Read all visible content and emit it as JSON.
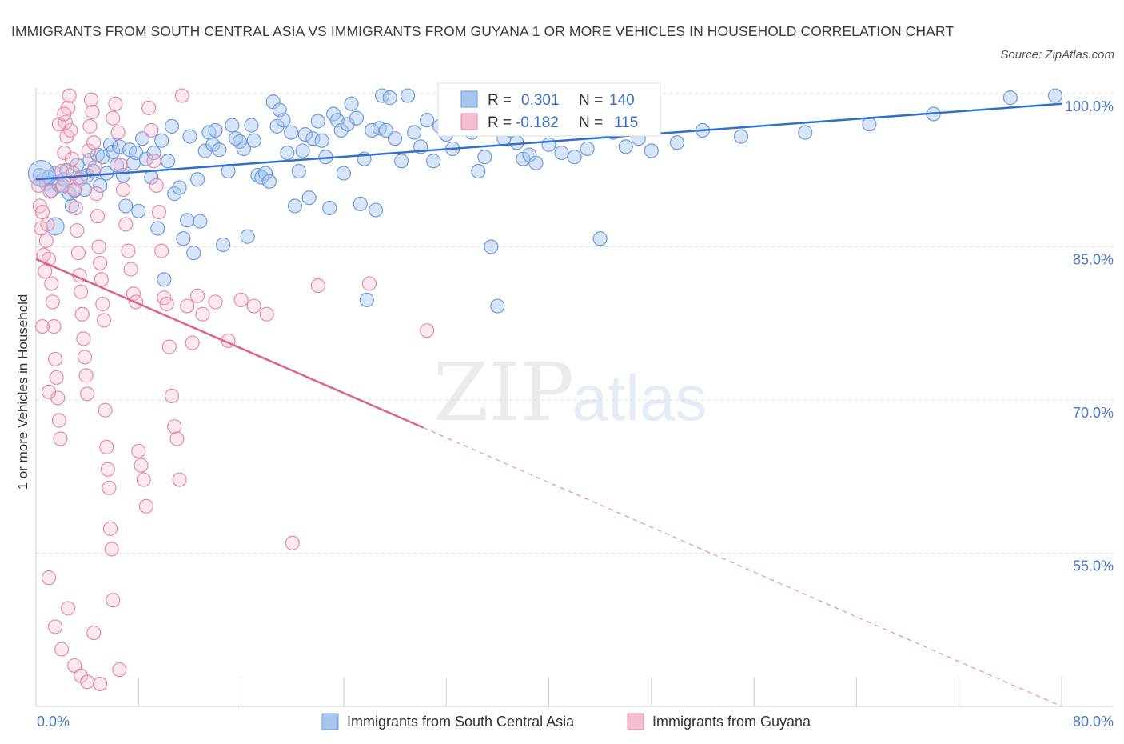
{
  "title": "IMMIGRANTS FROM SOUTH CENTRAL ASIA VS IMMIGRANTS FROM GUYANA 1 OR MORE VEHICLES IN HOUSEHOLD CORRELATION CHART",
  "source": "Source: ZipAtlas.com",
  "watermark": {
    "zip": "ZIP",
    "atlas": "atlas"
  },
  "colors": {
    "blue": "#6d9be0",
    "blue_fill": "#a9c6f0",
    "blue_line": "#2f6fcf",
    "pink": "#e889a8",
    "pink_fill": "#f5bdd0",
    "pink_line": "#e0608e",
    "grid": "#dddddd",
    "tick_text": "#4a7ac8"
  },
  "stats": {
    "blue": {
      "r_label": "R =",
      "r": "0.301",
      "n_label": "N =",
      "n": "140"
    },
    "pink": {
      "r_label": "R =",
      "r": "-0.182",
      "n_label": "N =",
      "n": "115"
    }
  },
  "legend": {
    "blue": "Immigrants from South Central Asia",
    "pink": "Immigrants from Guyana"
  },
  "chart_data": {
    "type": "scatter",
    "title": "IMMIGRANTS FROM SOUTH CENTRAL ASIA VS IMMIGRANTS FROM GUYANA 1 OR MORE VEHICLES IN HOUSEHOLD CORRELATION CHART",
    "xlabel": "",
    "ylabel": "1 or more Vehicles in Household",
    "xlim": [
      0,
      80
    ],
    "ylim": [
      40,
      100
    ],
    "x_ticks": [
      "0.0%",
      "80.0%"
    ],
    "y_ticks": [
      "100.0%",
      "85.0%",
      "70.0%",
      "55.0%"
    ],
    "y_tick_values": [
      100,
      85,
      70,
      55
    ],
    "grid": true,
    "legend_position": "bottom",
    "series": [
      {
        "name": "Immigrants from South Central Asia",
        "color": "#6d9be0",
        "r": 0.301,
        "n": 140,
        "trend": [
          [
            0,
            91.6
          ],
          [
            80,
            99.0
          ]
        ],
        "points": [
          [
            0.3,
            92.0
          ],
          [
            0.5,
            91.5
          ],
          [
            0.8,
            91.2
          ],
          [
            1.0,
            91.8
          ],
          [
            1.2,
            90.5
          ],
          [
            1.5,
            92.2
          ],
          [
            1.8,
            91.0
          ],
          [
            2.0,
            90.8
          ],
          [
            2.2,
            91.6
          ],
          [
            2.4,
            92.5
          ],
          [
            2.6,
            90.2
          ],
          [
            2.8,
            89.0
          ],
          [
            3.0,
            90.5
          ],
          [
            3.2,
            93.0
          ],
          [
            3.5,
            91.8
          ],
          [
            3.8,
            90.6
          ],
          [
            4.0,
            92.0
          ],
          [
            4.2,
            93.5
          ],
          [
            4.5,
            92.4
          ],
          [
            4.8,
            94.0
          ],
          [
            5.0,
            91.0
          ],
          [
            5.2,
            93.8
          ],
          [
            5.5,
            92.2
          ],
          [
            5.8,
            95.0
          ],
          [
            6.0,
            94.3
          ],
          [
            6.3,
            93.0
          ],
          [
            6.5,
            94.8
          ],
          [
            6.8,
            92.0
          ],
          [
            7.0,
            89.0
          ],
          [
            7.3,
            94.5
          ],
          [
            7.6,
            93.2
          ],
          [
            7.8,
            94.2
          ],
          [
            8.0,
            88.5
          ],
          [
            8.3,
            95.6
          ],
          [
            8.6,
            93.6
          ],
          [
            9.0,
            91.8
          ],
          [
            9.2,
            94.2
          ],
          [
            9.5,
            86.8
          ],
          [
            9.8,
            95.4
          ],
          [
            10.0,
            81.8
          ],
          [
            10.3,
            93.4
          ],
          [
            10.6,
            96.8
          ],
          [
            10.8,
            90.2
          ],
          [
            11.2,
            90.8
          ],
          [
            11.5,
            85.8
          ],
          [
            11.8,
            87.6
          ],
          [
            12.0,
            95.8
          ],
          [
            12.3,
            84.4
          ],
          [
            12.6,
            91.6
          ],
          [
            12.8,
            87.5
          ],
          [
            13.2,
            94.4
          ],
          [
            13.5,
            96.2
          ],
          [
            13.8,
            95.0
          ],
          [
            14.0,
            96.4
          ],
          [
            14.3,
            94.5
          ],
          [
            14.6,
            85.2
          ],
          [
            15.0,
            92.4
          ],
          [
            15.3,
            96.9
          ],
          [
            15.6,
            95.6
          ],
          [
            15.9,
            95.3
          ],
          [
            16.2,
            94.6
          ],
          [
            16.5,
            86.0
          ],
          [
            16.8,
            96.9
          ],
          [
            17.0,
            95.4
          ],
          [
            17.3,
            92.0
          ],
          [
            17.6,
            91.8
          ],
          [
            17.9,
            92.2
          ],
          [
            18.2,
            91.4
          ],
          [
            18.5,
            99.2
          ],
          [
            18.8,
            96.8
          ],
          [
            19.0,
            98.4
          ],
          [
            19.3,
            97.4
          ],
          [
            19.6,
            94.2
          ],
          [
            19.9,
            96.2
          ],
          [
            20.2,
            89.0
          ],
          [
            20.5,
            92.4
          ],
          [
            20.8,
            94.4
          ],
          [
            21.0,
            96.0
          ],
          [
            21.3,
            89.8
          ],
          [
            21.6,
            95.6
          ],
          [
            22.0,
            97.3
          ],
          [
            22.3,
            95.4
          ],
          [
            22.6,
            93.8
          ],
          [
            22.9,
            88.8
          ],
          [
            23.2,
            98.0
          ],
          [
            23.5,
            97.4
          ],
          [
            23.8,
            96.4
          ],
          [
            24.0,
            92.2
          ],
          [
            24.3,
            97.0
          ],
          [
            24.6,
            99.0
          ],
          [
            25.0,
            97.6
          ],
          [
            25.3,
            89.2
          ],
          [
            25.6,
            93.6
          ],
          [
            25.8,
            79.8
          ],
          [
            26.2,
            96.4
          ],
          [
            26.5,
            88.6
          ],
          [
            26.8,
            96.6
          ],
          [
            27.0,
            99.8
          ],
          [
            27.3,
            96.4
          ],
          [
            27.6,
            99.6
          ],
          [
            28.0,
            95.6
          ],
          [
            28.5,
            93.4
          ],
          [
            29.0,
            99.8
          ],
          [
            29.5,
            96.2
          ],
          [
            30.0,
            94.8
          ],
          [
            30.5,
            97.4
          ],
          [
            31.0,
            93.4
          ],
          [
            31.5,
            96.8
          ],
          [
            32.0,
            96.0
          ],
          [
            32.5,
            94.6
          ],
          [
            33.0,
            99.6
          ],
          [
            33.5,
            97.6
          ],
          [
            34.0,
            96.2
          ],
          [
            34.5,
            92.4
          ],
          [
            35.0,
            93.8
          ],
          [
            35.5,
            85.0
          ],
          [
            36.0,
            79.2
          ],
          [
            36.5,
            95.6
          ],
          [
            37.0,
            96.4
          ],
          [
            37.5,
            95.2
          ],
          [
            38.0,
            93.6
          ],
          [
            38.5,
            94.0
          ],
          [
            39.0,
            93.2
          ],
          [
            40.0,
            95.0
          ],
          [
            41.0,
            94.2
          ],
          [
            42.0,
            93.8
          ],
          [
            43.0,
            94.6
          ],
          [
            44.0,
            85.8
          ],
          [
            45.0,
            96.2
          ],
          [
            46.0,
            94.8
          ],
          [
            47.0,
            95.6
          ],
          [
            48.0,
            94.4
          ],
          [
            50.0,
            95.2
          ],
          [
            52.0,
            96.4
          ],
          [
            55.0,
            95.8
          ],
          [
            60.0,
            96.2
          ],
          [
            65.0,
            97.0
          ],
          [
            70.0,
            98.0
          ],
          [
            76.0,
            99.6
          ],
          [
            79.5,
            99.8
          ]
        ]
      },
      {
        "name": "Immigrants from Guyana",
        "color": "#e889a8",
        "r": -0.182,
        "n": 115,
        "trend": [
          [
            0,
            83.8
          ],
          [
            30.2,
            67.3
          ],
          [
            80,
            40.0
          ]
        ],
        "points": [
          [
            0.2,
            91.0
          ],
          [
            0.3,
            89.0
          ],
          [
            0.4,
            86.8
          ],
          [
            0.5,
            88.4
          ],
          [
            0.6,
            84.2
          ],
          [
            0.7,
            82.6
          ],
          [
            0.8,
            85.6
          ],
          [
            0.9,
            87.2
          ],
          [
            1.0,
            83.8
          ],
          [
            1.1,
            90.4
          ],
          [
            1.2,
            81.4
          ],
          [
            1.3,
            79.6
          ],
          [
            1.4,
            77.2
          ],
          [
            1.5,
            74.0
          ],
          [
            1.6,
            72.2
          ],
          [
            1.7,
            70.2
          ],
          [
            1.8,
            68.0
          ],
          [
            1.9,
            66.2
          ],
          [
            2.0,
            92.4
          ],
          [
            2.1,
            91.0
          ],
          [
            2.2,
            94.2
          ],
          [
            2.3,
            97.2
          ],
          [
            2.4,
            95.8
          ],
          [
            2.5,
            98.6
          ],
          [
            2.6,
            99.8
          ],
          [
            2.7,
            96.4
          ],
          [
            2.8,
            93.6
          ],
          [
            2.9,
            92.2
          ],
          [
            3.0,
            90.6
          ],
          [
            3.1,
            88.8
          ],
          [
            3.2,
            86.6
          ],
          [
            3.3,
            84.4
          ],
          [
            3.4,
            82.2
          ],
          [
            3.5,
            80.6
          ],
          [
            3.6,
            78.4
          ],
          [
            3.7,
            76.0
          ],
          [
            3.8,
            74.2
          ],
          [
            3.9,
            72.4
          ],
          [
            4.0,
            70.6
          ],
          [
            4.1,
            94.4
          ],
          [
            4.2,
            96.8
          ],
          [
            4.3,
            99.4
          ],
          [
            4.4,
            98.2
          ],
          [
            4.5,
            95.2
          ],
          [
            4.6,
            92.8
          ],
          [
            4.7,
            90.2
          ],
          [
            4.8,
            88.0
          ],
          [
            4.9,
            85.0
          ],
          [
            5.0,
            83.4
          ],
          [
            5.1,
            81.8
          ],
          [
            5.2,
            79.4
          ],
          [
            5.3,
            77.8
          ],
          [
            5.4,
            69.0
          ],
          [
            5.5,
            65.4
          ],
          [
            5.6,
            63.2
          ],
          [
            5.7,
            61.4
          ],
          [
            5.8,
            57.4
          ],
          [
            5.9,
            55.4
          ],
          [
            6.0,
            97.6
          ],
          [
            6.2,
            99.0
          ],
          [
            6.4,
            96.2
          ],
          [
            6.6,
            93.0
          ],
          [
            6.8,
            90.6
          ],
          [
            7.0,
            87.2
          ],
          [
            7.2,
            84.6
          ],
          [
            7.4,
            82.8
          ],
          [
            7.6,
            80.4
          ],
          [
            7.8,
            79.6
          ],
          [
            8.0,
            65.0
          ],
          [
            8.2,
            63.6
          ],
          [
            8.4,
            62.2
          ],
          [
            8.6,
            59.6
          ],
          [
            8.8,
            98.6
          ],
          [
            9.0,
            96.4
          ],
          [
            9.2,
            93.4
          ],
          [
            9.4,
            91.0
          ],
          [
            9.6,
            88.4
          ],
          [
            9.8,
            84.6
          ],
          [
            10.0,
            80.0
          ],
          [
            10.2,
            79.4
          ],
          [
            10.4,
            75.2
          ],
          [
            10.6,
            70.4
          ],
          [
            10.8,
            67.4
          ],
          [
            11.0,
            66.2
          ],
          [
            11.2,
            62.2
          ],
          [
            11.4,
            99.8
          ],
          [
            11.8,
            79.2
          ],
          [
            12.2,
            75.6
          ],
          [
            12.6,
            80.2
          ],
          [
            13.0,
            78.4
          ],
          [
            14.0,
            79.6
          ],
          [
            15.0,
            75.8
          ],
          [
            16.0,
            79.8
          ],
          [
            17.0,
            79.2
          ],
          [
            18.0,
            78.4
          ],
          [
            20.0,
            56.0
          ],
          [
            22.0,
            81.2
          ],
          [
            26.0,
            81.4
          ],
          [
            30.5,
            76.8
          ],
          [
            1.0,
            52.6
          ],
          [
            1.5,
            47.8
          ],
          [
            2.0,
            45.6
          ],
          [
            2.5,
            49.6
          ],
          [
            3.0,
            44.0
          ],
          [
            3.5,
            43.0
          ],
          [
            4.0,
            42.4
          ],
          [
            4.5,
            47.2
          ],
          [
            5.0,
            42.2
          ],
          [
            6.0,
            50.4
          ],
          [
            6.5,
            43.6
          ],
          [
            0.5,
            77.2
          ],
          [
            1.0,
            70.8
          ],
          [
            1.8,
            97.0
          ],
          [
            2.2,
            98.0
          ],
          [
            3.4,
            91.6
          ]
        ]
      }
    ]
  }
}
